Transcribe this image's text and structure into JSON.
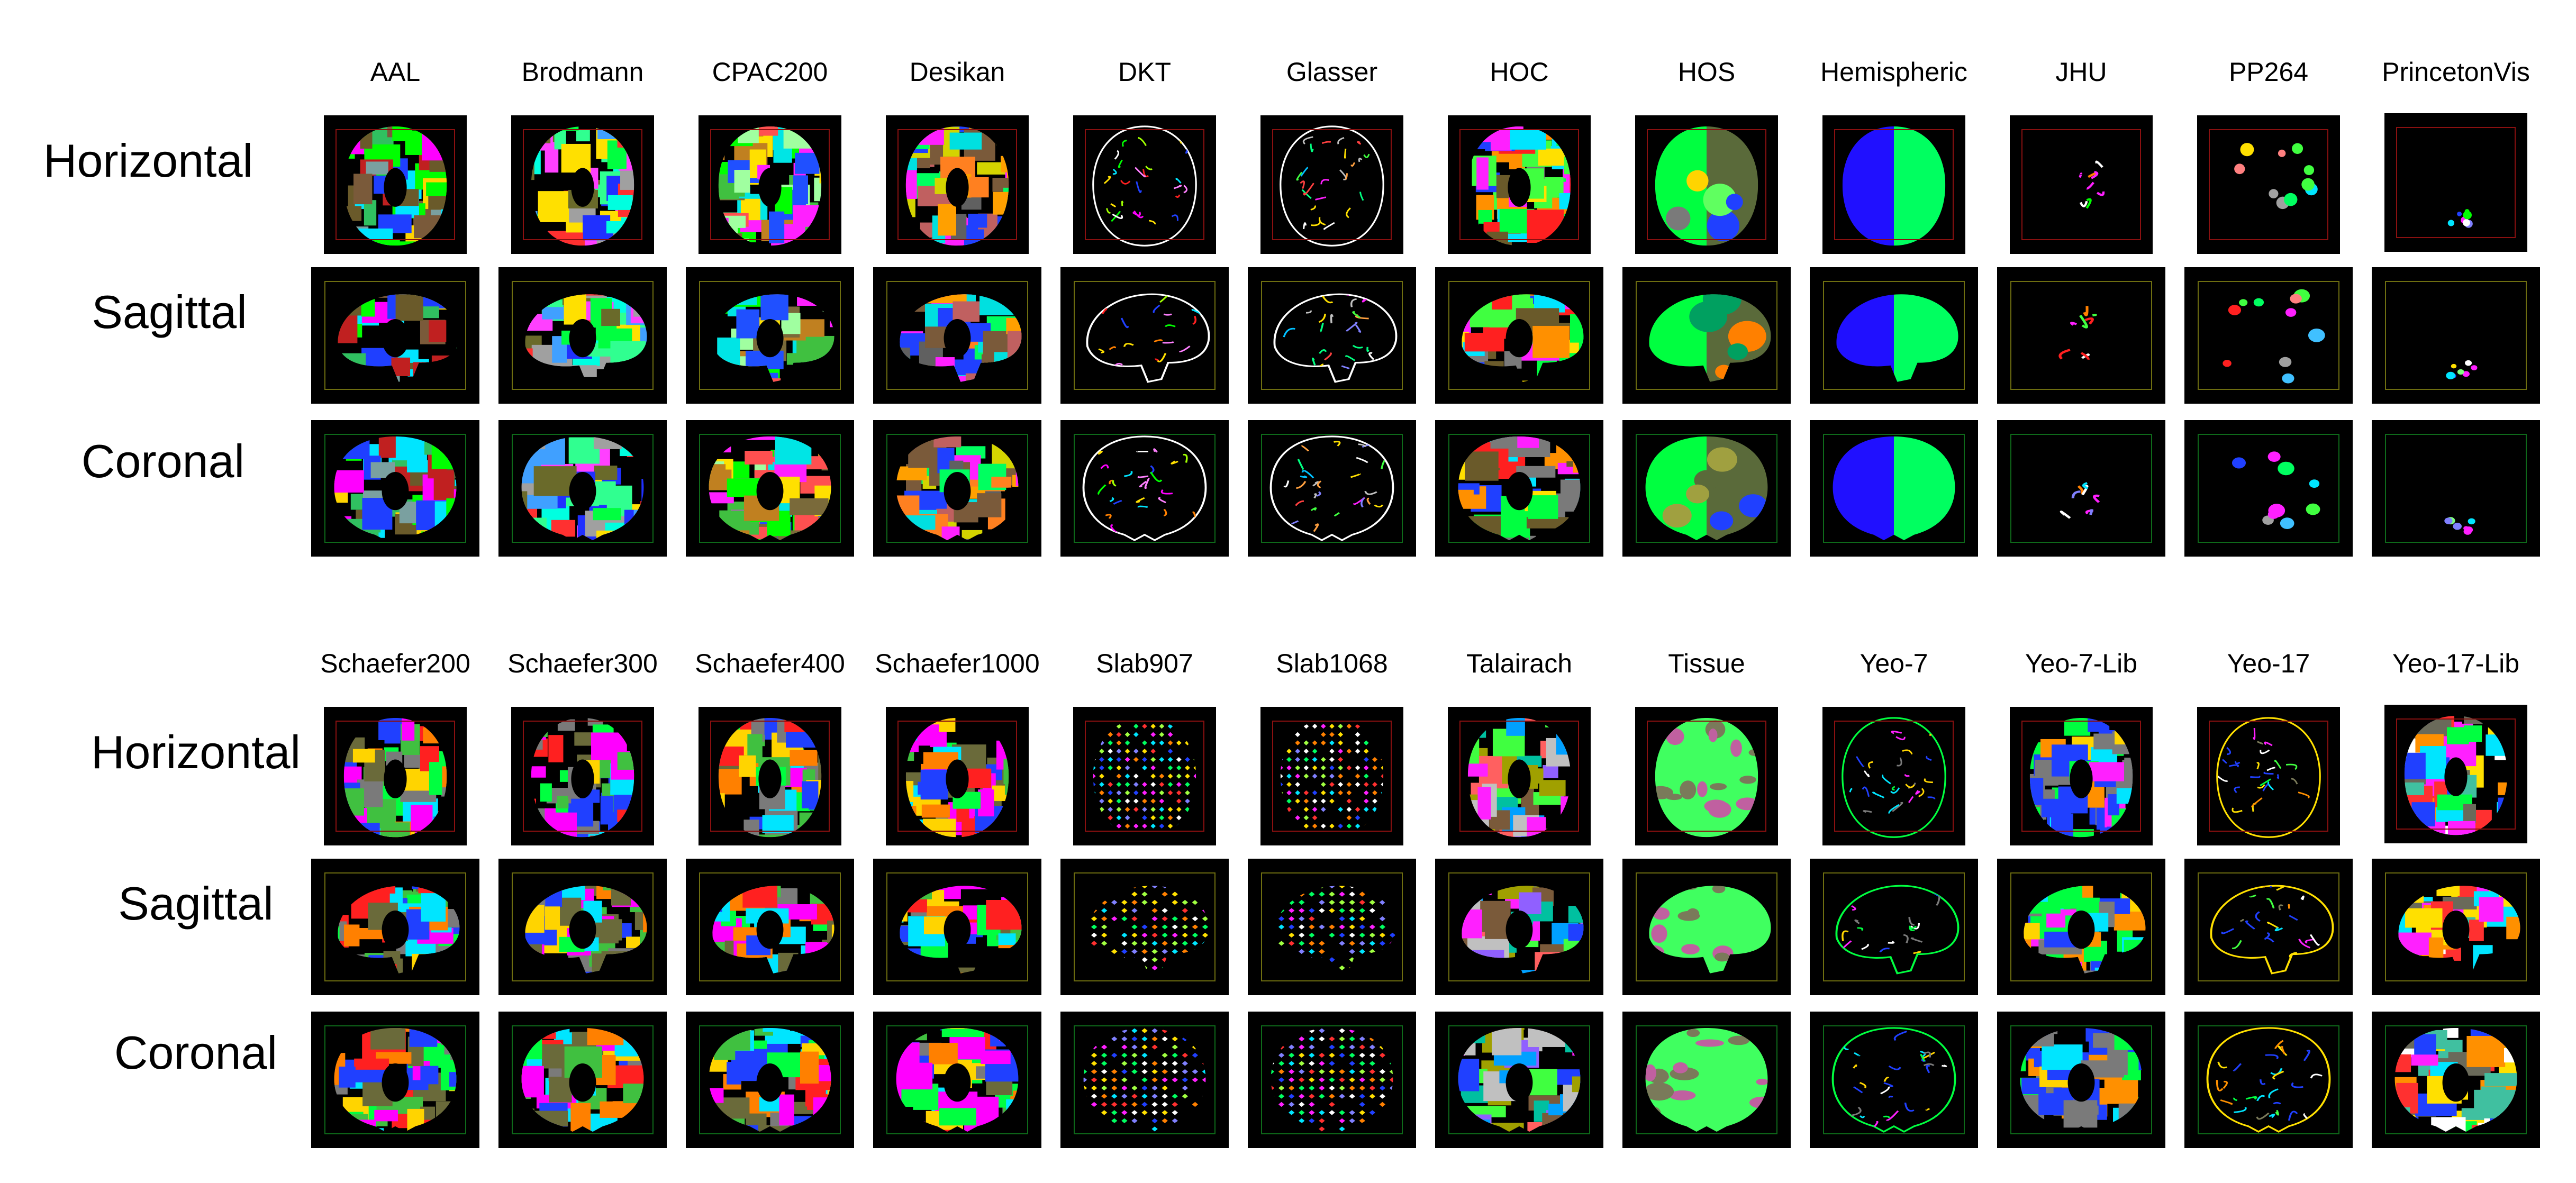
{
  "panels": [
    {
      "atlases": [
        {
          "name": "AAL",
          "style": "parcel",
          "colors": [
            "#ff00ff",
            "#00ff00",
            "#1f3fff",
            "#ffd400",
            "#00e5ff",
            "#7a5a3a",
            "#7aa0a0",
            "#6a5a2a",
            "#c02020",
            "#30c060"
          ]
        },
        {
          "name": "Brodmann",
          "style": "parcel",
          "colors": [
            "#00ff40",
            "#2030ff",
            "#ff40ff",
            "#00ffe0",
            "#ffe000",
            "#6a6a2a",
            "#ff3030",
            "#40a0ff",
            "#a0a0a0",
            "#30ff90"
          ]
        },
        {
          "name": "CPAC200",
          "style": "parcel",
          "colors": [
            "#ffe000",
            "#00ff00",
            "#ff20ff",
            "#2050ff",
            "#7a6a3a",
            "#00e5e5",
            "#a0ffa0",
            "#c08020",
            "#40c040",
            "#ff5050"
          ]
        },
        {
          "name": "Desikan",
          "style": "parcel",
          "colors": [
            "#7a5a3a",
            "#ffa000",
            "#00ff60",
            "#ff20ff",
            "#2040ff",
            "#d4d400",
            "#00e0e0",
            "#c06060",
            "#606060",
            "#ff8020"
          ]
        },
        {
          "name": "DKT",
          "style": "outline",
          "colors": [
            "#ffe000",
            "#00ff00",
            "#ff2020",
            "#00e5ff",
            "#ff00ff",
            "#ff8000",
            "#ffffff",
            "#2040ff",
            "#a0ff00",
            "#ff80ff"
          ]
        },
        {
          "name": "Glasser",
          "style": "outline",
          "colors": [
            "#00ff80",
            "#ff20ff",
            "#ffe000",
            "#00c0ff",
            "#ff4040",
            "#8080ff",
            "#ffffff",
            "#40ff40",
            "#ffa040",
            "#c0c0c0"
          ]
        },
        {
          "name": "HOC",
          "style": "parcel",
          "colors": [
            "#2040ff",
            "#6a5a2a",
            "#ffe000",
            "#00ff40",
            "#ff20ff",
            "#ff2020",
            "#00e5ff",
            "#7a7a7a",
            "#ff9000",
            "#40ff40"
          ]
        },
        {
          "name": "HOS",
          "style": "halves",
          "colors": [
            "#00ff40",
            "#5a6a3a",
            "#ffd400",
            "#7a7a7a",
            "#2040ff",
            "#00a060",
            "#a0a040",
            "#60ff60",
            "#404040",
            "#ff8000"
          ]
        },
        {
          "name": "Hemispheric",
          "style": "halves",
          "colors": [
            "#2010ff",
            "#00ff60",
            "#2010ff",
            "#00ff60",
            "#2010ff",
            "#00ff60",
            "#2010ff",
            "#00ff60",
            "#2010ff",
            "#00ff60"
          ]
        },
        {
          "name": "JHU",
          "style": "sparse",
          "colors": [
            "#ff20ff",
            "#00ff00",
            "#2040ff",
            "#ff2020",
            "#00e5ff",
            "#ffe000",
            "#ffffff",
            "#8080ff",
            "#40ff40",
            "#ff8000"
          ]
        },
        {
          "name": "PP264",
          "style": "dots",
          "colors": [
            "#ff20ff",
            "#00ff60",
            "#2040ff",
            "#ffe000",
            "#00e5ff",
            "#ff2020",
            "#a0a0a0",
            "#40ff40",
            "#ff8080",
            "#40c0ff"
          ]
        },
        {
          "name": "PrincetonVis",
          "style": "tiny",
          "colors": [
            "#ff20ff",
            "#00ff00",
            "#ffe000",
            "#2040ff",
            "#00e5ff",
            "#ff2020",
            "#ffffff",
            "#ff8000",
            "#80ff80",
            "#8080ff"
          ]
        }
      ]
    },
    {
      "atlases": [
        {
          "name": "Schaefer200",
          "style": "parcel",
          "colors": [
            "#ff00ff",
            "#00ff40",
            "#2040ff",
            "#ffd400",
            "#00e5ff",
            "#6a6a3a",
            "#ff2020",
            "#7a7a7a",
            "#40c040",
            "#ff8000"
          ]
        },
        {
          "name": "Schaefer300",
          "style": "parcel",
          "colors": [
            "#ff00ff",
            "#00ff40",
            "#2040ff",
            "#ffd400",
            "#00e5ff",
            "#6a6a3a",
            "#ff2020",
            "#7a7a7a",
            "#40c040",
            "#ff8000"
          ]
        },
        {
          "name": "Schaefer400",
          "style": "parcel",
          "colors": [
            "#00ff40",
            "#ff00ff",
            "#2040ff",
            "#ffd400",
            "#00e5ff",
            "#6a6a3a",
            "#ff2020",
            "#7a7a7a",
            "#40c040",
            "#ff8000"
          ]
        },
        {
          "name": "Schaefer1000",
          "style": "parcel",
          "colors": [
            "#ff2020",
            "#ff00ff",
            "#00ff40",
            "#2040ff",
            "#ffd400",
            "#00e5ff",
            "#6a6a3a",
            "#7a7a7a",
            "#40c040",
            "#ff8000"
          ]
        },
        {
          "name": "Slab907",
          "style": "grid",
          "colors": [
            "#ff20ff",
            "#00ff60",
            "#ffe000",
            "#2040ff",
            "#00e5ff",
            "#ff3030",
            "#a0ff40",
            "#ff8000",
            "#8080ff",
            "#ffffff"
          ]
        },
        {
          "name": "Slab1068",
          "style": "grid",
          "colors": [
            "#ffe000",
            "#ff20ff",
            "#00ff60",
            "#2040ff",
            "#00e5ff",
            "#ff3030",
            "#a0ff40",
            "#ff8000",
            "#8080ff",
            "#ffffff"
          ]
        },
        {
          "name": "Talairach",
          "style": "parcel",
          "colors": [
            "#00c0a0",
            "#2040ff",
            "#ff20ff",
            "#a0a000",
            "#7a5a3a",
            "#40ff40",
            "#9060ff",
            "#00a0ff",
            "#c0c0c0",
            "#ff6060"
          ]
        },
        {
          "name": "Tissue",
          "style": "tissue",
          "colors": [
            "#40ff60",
            "#7a7a5a",
            "#c060a0",
            "#40ff60",
            "#7a7a5a",
            "#c060a0",
            "#40ff60",
            "#7a7a5a",
            "#c060a0",
            "#40ff60"
          ]
        },
        {
          "name": "Yeo-7",
          "style": "outline",
          "colors": [
            "#00ff40",
            "#ffd400",
            "#2040ff",
            "#ff20ff",
            "#00e5ff",
            "#ffffff",
            "#7a7a7a",
            "#00ff40",
            "#2040ff",
            "#ffd400"
          ]
        },
        {
          "name": "Yeo-7-Lib",
          "style": "parcel",
          "colors": [
            "#00ff40",
            "#ff9000",
            "#2040ff",
            "#7a7a7a",
            "#ffd400",
            "#00e5ff",
            "#ff20ff",
            "#00ff40",
            "#2040ff",
            "#7a7a7a"
          ]
        },
        {
          "name": "Yeo-17",
          "style": "outline",
          "colors": [
            "#ffe000",
            "#00ff40",
            "#2040ff",
            "#ff20ff",
            "#ffffff",
            "#00e5ff",
            "#7a7a5a",
            "#ff9000",
            "#40ff40",
            "#2040ff"
          ]
        },
        {
          "name": "Yeo-17-Lib",
          "style": "parcel",
          "colors": [
            "#ffe000",
            "#ff20ff",
            "#00e5ff",
            "#2040ff",
            "#00ff40",
            "#6a6a5a",
            "#ff9000",
            "#ffffff",
            "#40c0a0",
            "#ff3030"
          ]
        }
      ]
    }
  ],
  "views": [
    "Horizontal",
    "Sagittal",
    "Coronal"
  ]
}
